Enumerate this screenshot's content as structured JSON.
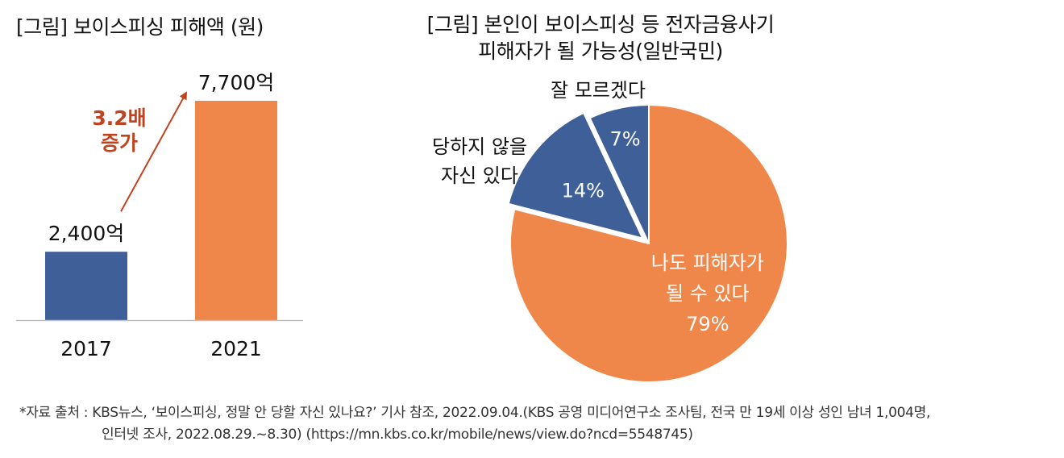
{
  "chart_data": [
    {
      "type": "bar",
      "title": "[그림] 보이스피싱 피해액 (원)",
      "categories": [
        "2017",
        "2021"
      ],
      "values": [
        2400,
        7700
      ],
      "value_labels": [
        "2,400억",
        "7,700억"
      ],
      "unit": "억 원",
      "colors": [
        "#3F5F99",
        "#F0874A"
      ],
      "annotation": {
        "lines": [
          "3.2배",
          "증가"
        ],
        "color": "#C0431F"
      },
      "ylim": [
        0,
        7700
      ],
      "grid": false
    },
    {
      "type": "pie",
      "title_lines": [
        "[그림] 본인이 보이스피싱 등 전자금융사기",
        "피해자가 될 가능성(일반국민)"
      ],
      "slices": [
        {
          "label_lines": [
            "나도 피해자가",
            "될 수 있다"
          ],
          "value": 79,
          "value_label": "79%",
          "color": "#F0874A",
          "exploded": false
        },
        {
          "label_lines": [
            "당하지 않을",
            "자신 있다"
          ],
          "value": 14,
          "value_label": "14%",
          "color": "#3F5F99",
          "exploded": true
        },
        {
          "label_lines": [
            "잘 모르겠다"
          ],
          "value": 7,
          "value_label": "7%",
          "color": "#3F5F99",
          "exploded": false
        }
      ]
    }
  ],
  "footer": {
    "line1": "*자료 출처 : KBS뉴스, ‘보이스피싱, 정말 안 당할 자신 있나요?’ 기사 참조, 2022.09.04.(KBS 공영 미디어연구소 조사팀, 전국 만 19세 이상 성인 남녀 1,004명,",
    "line2": "인터넷 조사, 2022.08.29.~8.30) (https://mn.kbs.co.kr/mobile/news/view.do?ncd=5548745)"
  }
}
